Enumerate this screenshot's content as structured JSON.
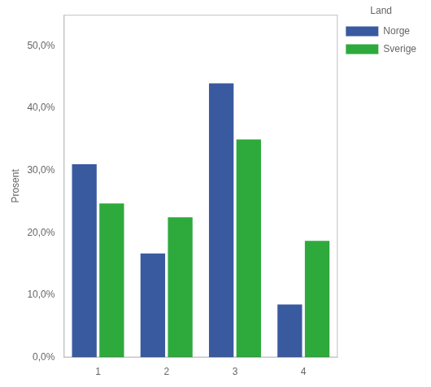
{
  "chart_data": {
    "type": "bar",
    "categories": [
      "1",
      "2",
      "3",
      "4"
    ],
    "series": [
      {
        "name": "Norge",
        "color": "#3A5AA0",
        "values": [
          31.0,
          16.7,
          44.0,
          8.5
        ]
      },
      {
        "name": "Sverige",
        "color": "#2EAA3C",
        "values": [
          24.7,
          22.5,
          35.0,
          18.7
        ]
      }
    ],
    "y_label": "Prosent",
    "ylim": [
      0,
      55
    ],
    "yticks": [
      {
        "value": 0,
        "label": "0,0%"
      },
      {
        "value": 10,
        "label": "10,0%"
      },
      {
        "value": 20,
        "label": "20,0%"
      },
      {
        "value": 30,
        "label": "30,0%"
      },
      {
        "value": 40,
        "label": "40,0%"
      },
      {
        "value": 50,
        "label": "50,0%"
      }
    ],
    "legend_title": "Land",
    "legend": "right",
    "grid": false
  }
}
